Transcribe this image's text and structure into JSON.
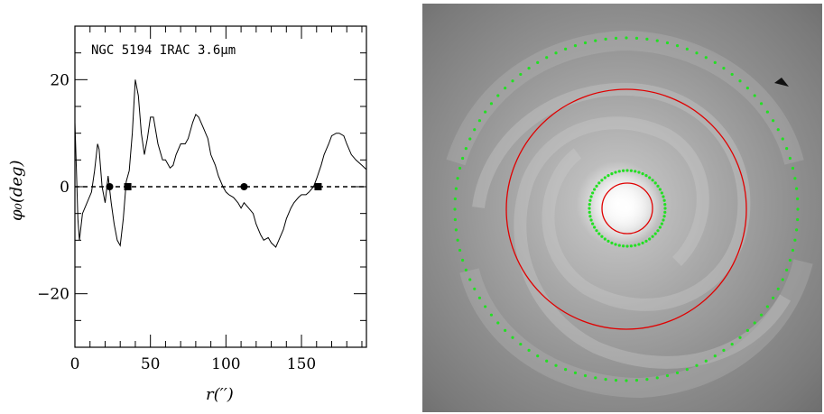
{
  "chart_data": [
    {
      "type": "line",
      "annotation": "NGC 5194 IRAC 3.6μm",
      "xlabel": "r(′′)",
      "ylabel": "φ₀(deg)",
      "xlim": [
        0,
        193
      ],
      "ylim": [
        -30,
        30
      ],
      "x_ticks": [
        0,
        50,
        100,
        150
      ],
      "y_ticks": [
        -20,
        0,
        20
      ],
      "x_tick_labels": [
        "0",
        "50",
        "100",
        "150"
      ],
      "y_tick_labels": [
        "−20",
        "0",
        "20"
      ],
      "reference_line": {
        "y": 0,
        "style": "dashed"
      },
      "series": [
        {
          "x": [
            0,
            1,
            2,
            3,
            5,
            8,
            11,
            13,
            15,
            16,
            18,
            20,
            22,
            24,
            26,
            28,
            30,
            32,
            34,
            36,
            38,
            40,
            42,
            44,
            46,
            48,
            50,
            52,
            55,
            58,
            60,
            63,
            65,
            67,
            70,
            73,
            75,
            78,
            80,
            82,
            85,
            88,
            90,
            93,
            95,
            98,
            100,
            102,
            105,
            108,
            110,
            112,
            115,
            118,
            120,
            123,
            125,
            128,
            130,
            133,
            135,
            138,
            140,
            143,
            145,
            148,
            150,
            153,
            155,
            158,
            160,
            163,
            165,
            168,
            170,
            173,
            175,
            178,
            180,
            183,
            186,
            190,
            193
          ],
          "y": [
            12,
            3,
            -6,
            -10,
            -5,
            -3,
            -1,
            3,
            8,
            7,
            0,
            -3,
            2,
            -3,
            -7,
            -10,
            -11,
            -6,
            1,
            3,
            10,
            20,
            17,
            10,
            6,
            9,
            13,
            13,
            8,
            5,
            5,
            3.5,
            4,
            6,
            8,
            8,
            9,
            12,
            13.5,
            13,
            11,
            9,
            6,
            4,
            2,
            0,
            -1,
            -1.5,
            -2,
            -3,
            -4,
            -3,
            -4,
            -5,
            -7,
            -9,
            -10,
            -9.5,
            -10.5,
            -11.3,
            -10,
            -8,
            -6,
            -4,
            -3,
            -2,
            -1.5,
            -1.5,
            -1,
            0,
            1.5,
            4,
            6,
            8,
            9.5,
            10,
            10,
            9.5,
            8,
            6,
            5,
            4,
            3.2
          ]
        }
      ],
      "markers": [
        {
          "x": 23,
          "y": 0,
          "shape": "circle"
        },
        {
          "x": 35,
          "y": 0,
          "shape": "square"
        },
        {
          "x": 112,
          "y": 0,
          "shape": "circle"
        },
        {
          "x": 161,
          "y": 0,
          "shape": "square"
        }
      ]
    },
    {
      "type": "image",
      "description_colors": {
        "background": "#9a9a9a",
        "red_circles": "#e00000",
        "green_dots": "#22e022"
      },
      "overlays": [
        {
          "kind": "circle",
          "style": "solid",
          "color": "red",
          "role": "outer"
        },
        {
          "kind": "circle",
          "style": "solid",
          "color": "red",
          "role": "inner"
        },
        {
          "kind": "circle",
          "style": "dotted",
          "color": "green",
          "role": "outer"
        },
        {
          "kind": "circle",
          "style": "dotted",
          "color": "green",
          "role": "inner"
        }
      ]
    }
  ]
}
